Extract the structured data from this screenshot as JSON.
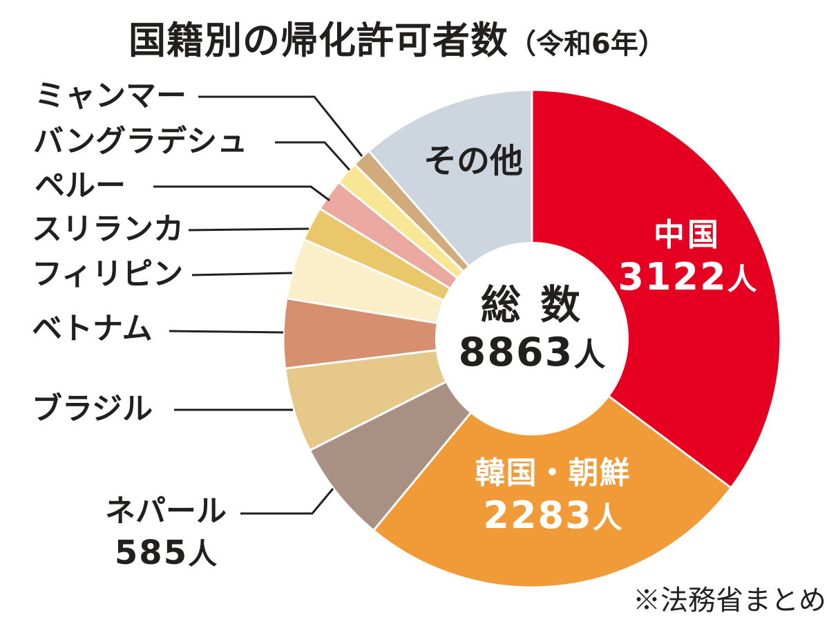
{
  "title": {
    "main": "国籍別の帰化許可者数",
    "suffix": "（令和6年）"
  },
  "source_note": "※法務省まとめ",
  "center_label": {
    "heading": "総 数",
    "value": 8863,
    "unit": "人"
  },
  "chart_data": {
    "type": "pie",
    "title": "国籍別の帰化許可者数（令和6年）",
    "donut": true,
    "direction": "clockwise",
    "start_angle_deg": 0,
    "legend_position": "callout-labels-left",
    "total": {
      "label": "総数",
      "value": 8863,
      "unit": "人"
    },
    "units": "人",
    "slices": [
      {
        "label": "中国",
        "value": 3122,
        "unit": "人",
        "pct_of_circle": 35.23,
        "color": "#e50021",
        "value_labeled_on_chart": true,
        "estimated": false
      },
      {
        "label": "韓国・朝鮮",
        "value": 2283,
        "unit": "人",
        "pct_of_circle": 25.76,
        "color": "#f09a38",
        "value_labeled_on_chart": true,
        "estimated": false
      },
      {
        "label": "ネパール",
        "value": 585,
        "unit": "人",
        "pct_of_circle": 6.6,
        "color": "#a89083",
        "value_labeled_on_chart": true,
        "estimated": false
      },
      {
        "label": "ブラジル",
        "value": 487,
        "unit": "人",
        "pct_of_circle": 5.5,
        "color": "#e6c98a",
        "value_labeled_on_chart": false,
        "estimated": true
      },
      {
        "label": "ベトナム",
        "value": 399,
        "unit": "人",
        "pct_of_circle": 4.5,
        "color": "#d6906f",
        "value_labeled_on_chart": false,
        "estimated": true
      },
      {
        "label": "フィリピン",
        "value": 349,
        "unit": "人",
        "pct_of_circle": 3.94,
        "color": "#faefc8",
        "value_labeled_on_chart": false,
        "estimated": true
      },
      {
        "label": "スリランカ",
        "value": 197,
        "unit": "人",
        "pct_of_circle": 2.22,
        "color": "#e9c76a",
        "value_labeled_on_chart": false,
        "estimated": true
      },
      {
        "label": "ペルー",
        "value": 184,
        "unit": "人",
        "pct_of_circle": 2.08,
        "color": "#eba8a0",
        "value_labeled_on_chart": false,
        "estimated": true
      },
      {
        "label": "バングラデシュ",
        "value": 136,
        "unit": "人",
        "pct_of_circle": 1.53,
        "color": "#f7e794",
        "value_labeled_on_chart": false,
        "estimated": true
      },
      {
        "label": "ミャンマー",
        "value": 111,
        "unit": "人",
        "pct_of_circle": 1.25,
        "color": "#d2ab7c",
        "value_labeled_on_chart": false,
        "estimated": true
      },
      {
        "label": "その他",
        "value": 1009,
        "unit": "人",
        "pct_of_circle": 11.39,
        "color": "#cdd5df",
        "value_labeled_on_chart": false,
        "estimated": true
      }
    ],
    "leader_line_color": "#221f1f",
    "slice_separator_color": "#ffffff"
  }
}
